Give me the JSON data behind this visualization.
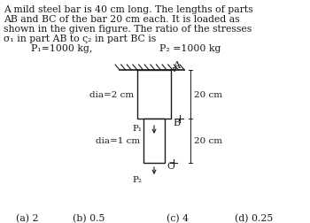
{
  "title_line1": "A mild steel bar is 40 cm long. The lengths of parts",
  "title_line2": "AB and BC of the bar 20 cm each. It is loaded as",
  "title_line3": "shown in the given figure. The ratio of the stresses",
  "title_line4": "σ₁ in part AB to ς₂ in part BC is",
  "p1_text": "P₁=1000 kg,",
  "p2_text": "P₂ =1000 kg",
  "dia_ab": "dia=2 cm",
  "dia_bc": "dia=1 cm",
  "dim_ab": "20 cm",
  "dim_bc": "20 cm",
  "label_A": "A",
  "label_B": "B",
  "label_C": "C",
  "label_P1": "P₁",
  "label_P2": "P₂",
  "options": [
    "(a) 2",
    "(b) 0.5",
    "(c) 4",
    "(d) 0.25"
  ],
  "bg_color": "#ffffff",
  "text_color": "#1a1a1a",
  "line_color": "#1a1a1a"
}
